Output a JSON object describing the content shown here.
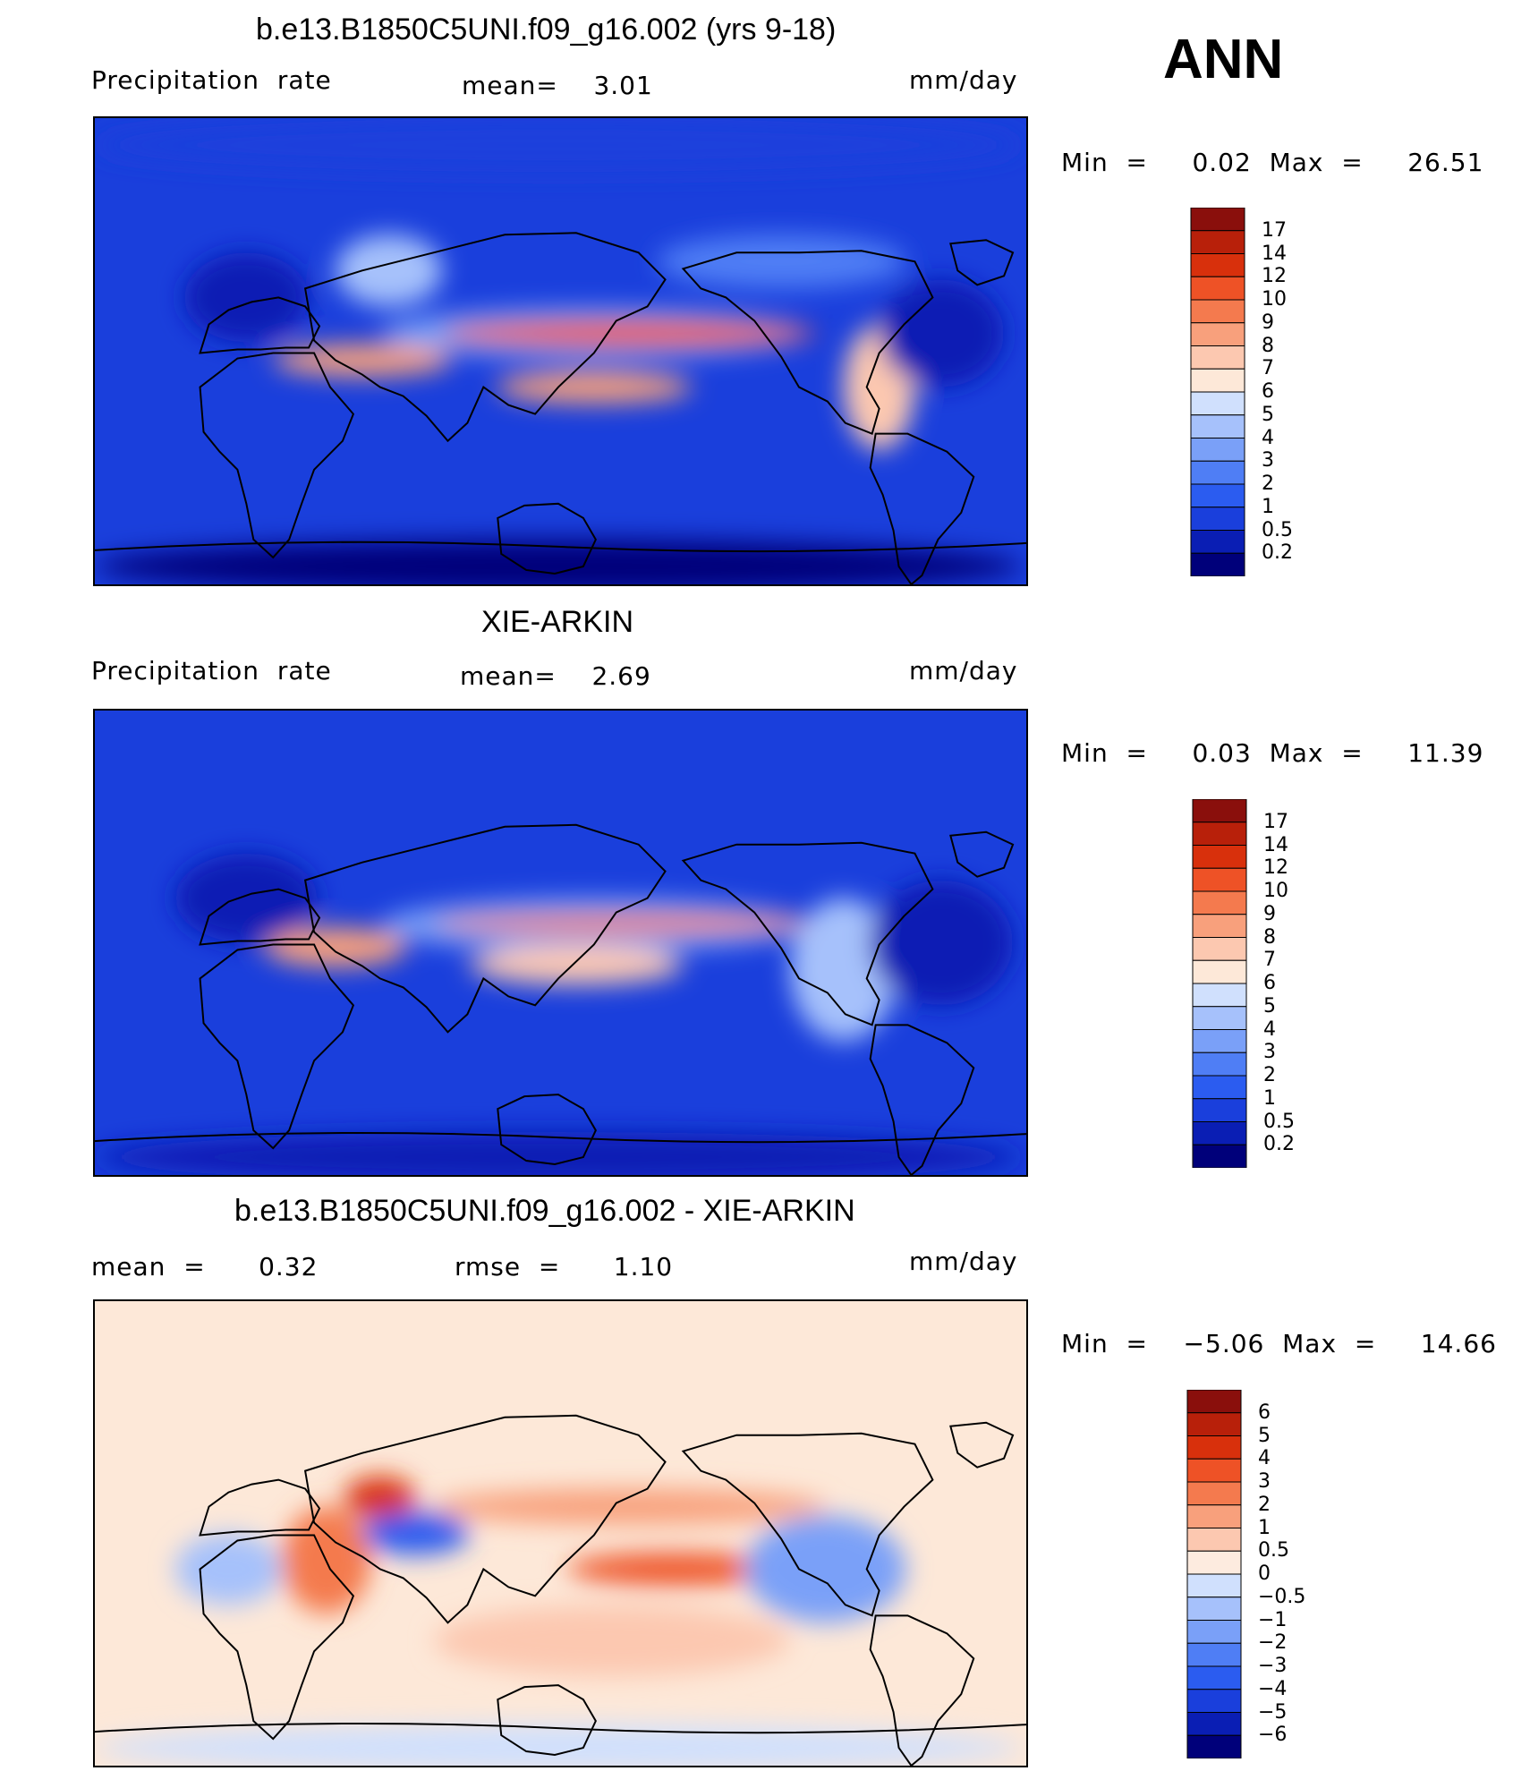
{
  "season": "ANN",
  "panels": [
    {
      "title": "b.e13.B1850C5UNI.f09_g16.002 (yrs 9-18)",
      "left_label": "Precipitation  rate",
      "mid_label": "mean=    3.01",
      "units": "mm/day",
      "minmax": "Min  =     0.02  Max  =     26.51",
      "theme": "precip",
      "colorbar": {
        "colors": [
          "#00007a",
          "#0a1eb4",
          "#1a3fdc",
          "#2b5cf0",
          "#4f7ef5",
          "#7aa0f8",
          "#a6c1fb",
          "#d0e0fd",
          "#fde8d8",
          "#fcc8b0",
          "#f8a07c",
          "#f47a4e",
          "#ee5226",
          "#d8300c",
          "#b8200a",
          "#8a0f0c"
        ],
        "labels": [
          "17",
          "14",
          "12",
          "10",
          "9",
          "8",
          "7",
          "6",
          "5",
          "4",
          "3",
          "2",
          "1",
          "0.5",
          "0.2"
        ]
      }
    },
    {
      "title": "XIE-ARKIN",
      "left_label": "Precipitation  rate",
      "mid_label": "mean=    2.69",
      "units": "mm/day",
      "minmax": "Min  =     0.03  Max  =     11.39",
      "theme": "obs",
      "colorbar": {
        "colors": [
          "#00007a",
          "#0a1eb4",
          "#1a3fdc",
          "#2b5cf0",
          "#4f7ef5",
          "#7aa0f8",
          "#a6c1fb",
          "#d0e0fd",
          "#fde8d8",
          "#fcc8b0",
          "#f8a07c",
          "#f47a4e",
          "#ee5226",
          "#d8300c",
          "#b8200a",
          "#8a0f0c"
        ],
        "labels": [
          "17",
          "14",
          "12",
          "10",
          "9",
          "8",
          "7",
          "6",
          "5",
          "4",
          "3",
          "2",
          "1",
          "0.5",
          "0.2"
        ]
      }
    },
    {
      "title": "b.e13.B1850C5UNI.f09_g16.002 - XIE-ARKIN",
      "left_label": "mean  =      0.32",
      "mid_label": "rmse  =      1.10",
      "units": "mm/day",
      "minmax": "Min  =    −5.06  Max  =     14.66",
      "theme": "diff",
      "colorbar": {
        "colors": [
          "#00007a",
          "#0a1eb4",
          "#1a3fdc",
          "#2b5cf0",
          "#4f7ef5",
          "#7aa0f8",
          "#a6c1fb",
          "#d0e0fd",
          "#fdebdf",
          "#fcc8b0",
          "#f8a07c",
          "#f47a4e",
          "#ee5226",
          "#d8300c",
          "#b8200a",
          "#8a0f0c"
        ],
        "labels": [
          "6",
          "5",
          "4",
          "3",
          "2",
          "1",
          "0.5",
          "0",
          "−0.5",
          "−1",
          "−2",
          "−3",
          "−4",
          "−5",
          "−6"
        ]
      }
    }
  ]
}
